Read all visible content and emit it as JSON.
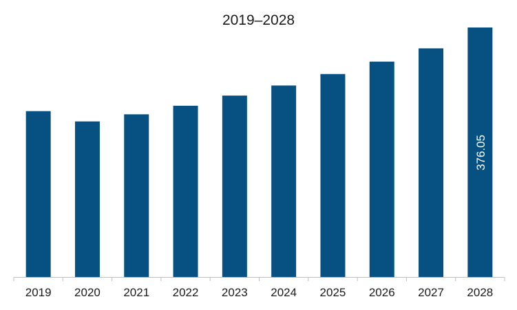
{
  "chart_data": {
    "type": "bar",
    "title": "2019–2028",
    "xlabel": "",
    "ylabel": "",
    "categories": [
      "2019",
      "2020",
      "2021",
      "2022",
      "2023",
      "2024",
      "2025",
      "2026",
      "2027",
      "2028"
    ],
    "series": [
      {
        "values": [
          250.0,
          234.5,
          245.2,
          258.1,
          273.4,
          288.6,
          305.9,
          324.6,
          344.6,
          376.05
        ],
        "color": "#065182"
      }
    ],
    "data_labels": [
      {
        "index": 9,
        "text": "376.05",
        "orientation": "vertical",
        "color": "#ffffff"
      }
    ],
    "ylim": [
      0,
      376.05
    ],
    "grid": false,
    "legend": "none",
    "axis_color": "#bfbfbf"
  }
}
